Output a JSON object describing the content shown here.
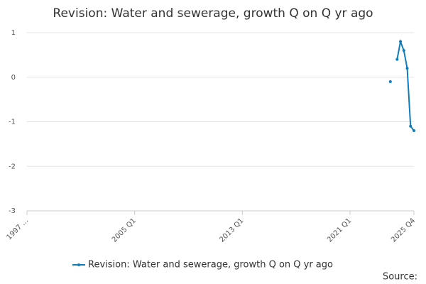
{
  "chart_data": {
    "type": "line",
    "title": "Revision: Water and sewerage, growth Q on Q yr ago",
    "categories": [
      "1997 ...",
      null,
      null,
      null,
      null,
      null,
      null,
      null,
      null,
      null,
      null,
      null,
      null,
      null,
      null,
      null,
      null,
      null,
      null,
      null,
      null,
      null,
      null,
      null,
      null,
      null,
      null,
      null,
      null,
      null,
      null,
      null,
      "2005 Q1",
      null,
      null,
      null,
      null,
      null,
      null,
      null,
      null,
      null,
      null,
      null,
      null,
      null,
      null,
      null,
      null,
      null,
      null,
      null,
      null,
      null,
      null,
      null,
      null,
      null,
      null,
      null,
      null,
      null,
      null,
      null,
      "2013 Q1",
      null,
      null,
      null,
      null,
      null,
      null,
      null,
      null,
      null,
      null,
      null,
      null,
      null,
      null,
      null,
      null,
      null,
      null,
      null,
      null,
      null,
      null,
      null,
      null,
      null,
      null,
      null,
      null,
      null,
      null,
      null,
      "2021 Q1",
      null,
      null,
      null,
      null,
      null,
      null,
      null,
      null,
      null,
      null,
      null,
      null,
      null,
      null,
      null,
      null,
      null,
      null,
      "2025 Q4"
    ],
    "series": [
      {
        "name": "Revision: Water and sewerage, growth Q on Q yr ago",
        "color": "#0f7dbc",
        "values": [
          null,
          null,
          null,
          null,
          null,
          null,
          null,
          null,
          null,
          null,
          null,
          null,
          null,
          null,
          null,
          null,
          null,
          null,
          null,
          null,
          null,
          null,
          null,
          null,
          null,
          null,
          null,
          null,
          null,
          null,
          null,
          null,
          null,
          null,
          null,
          null,
          null,
          null,
          null,
          null,
          null,
          null,
          null,
          null,
          null,
          null,
          null,
          null,
          null,
          null,
          null,
          null,
          null,
          null,
          null,
          null,
          null,
          null,
          null,
          null,
          null,
          null,
          null,
          null,
          null,
          null,
          null,
          null,
          null,
          null,
          null,
          null,
          null,
          null,
          null,
          null,
          null,
          null,
          null,
          null,
          null,
          null,
          null,
          null,
          null,
          null,
          null,
          null,
          null,
          null,
          null,
          null,
          null,
          null,
          null,
          null,
          null,
          null,
          null,
          null,
          null,
          null,
          null,
          null,
          null,
          null,
          null,
          null,
          -0.1,
          null,
          0.4,
          0.8,
          0.6,
          0.2,
          -1.1,
          -1.2
        ]
      }
    ],
    "ylim": [
      -3,
      1
    ],
    "yticks": [
      -3,
      -2,
      -1,
      0,
      1
    ],
    "grid": true,
    "source": "Source:"
  }
}
